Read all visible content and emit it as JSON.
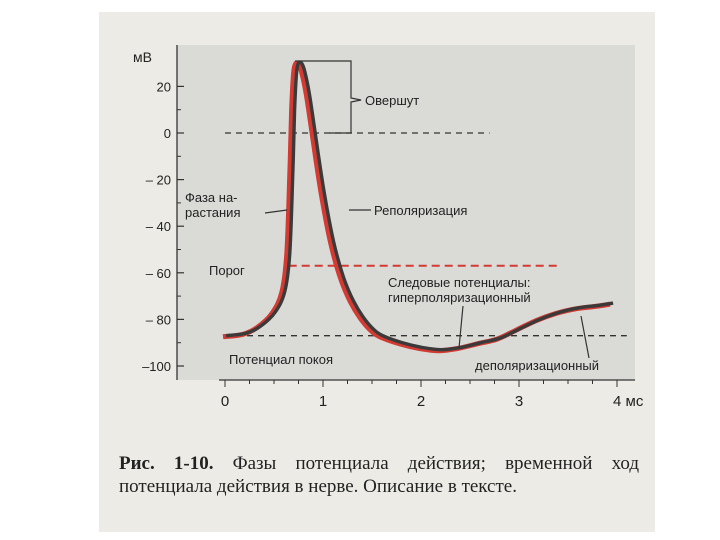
{
  "chart_data": {
    "type": "line",
    "ylabel": "мВ",
    "xunit": "мс",
    "xlim": [
      0,
      4
    ],
    "ylim": [
      -100,
      30
    ],
    "yticks": [
      20,
      0,
      -20,
      -40,
      -60,
      -80,
      -100
    ],
    "ytick_labels": [
      "20",
      "0",
      "– 20",
      "– 40",
      "– 60",
      "– 80",
      "–100"
    ],
    "xticks": [
      0,
      1,
      2,
      3,
      4
    ],
    "xtick_labels": [
      "0",
      "1",
      "2",
      "3",
      "4 мс"
    ],
    "grid": false,
    "series": [
      {
        "x": [
          0,
          0.2,
          0.35,
          0.5,
          0.6,
          0.65,
          0.68,
          0.7,
          0.72,
          0.74,
          0.77,
          0.8,
          0.85,
          0.9,
          1.0,
          1.1,
          1.2,
          1.3,
          1.4,
          1.5,
          1.6,
          1.8,
          2.0,
          2.2,
          2.4,
          2.6,
          2.8,
          3.0,
          3.2,
          3.4,
          3.6,
          3.8,
          3.95
        ],
        "y": [
          -87,
          -86,
          -83,
          -77,
          -68,
          -52,
          -20,
          10,
          26,
          30,
          30,
          27,
          17,
          3,
          -25,
          -47,
          -62,
          -72,
          -79,
          -84,
          -87,
          -90,
          -92,
          -93,
          -92,
          -90,
          -88,
          -84,
          -80,
          -77,
          -75,
          -74,
          -73
        ]
      }
    ],
    "reference_lines": [
      {
        "y": 0,
        "x": [
          0,
          2.7
        ],
        "style": "dashed",
        "color": "#333333"
      },
      {
        "y": -57,
        "x": [
          0.65,
          3.4
        ],
        "style": "dashed",
        "color": "#d23a32",
        "label": "Порог"
      },
      {
        "y": -87,
        "x": [
          0,
          4.1
        ],
        "style": "dashed",
        "color": "#333333",
        "label": "Потенциал покоя"
      }
    ],
    "annotations": {
      "overshoot": "Овершут",
      "rise_line1": "Фаза на-",
      "rise_line2": "растания",
      "repolarization": "Реполяризация",
      "threshold": "Порог",
      "trace_line1": "Следовые потенциалы:",
      "trace_line2": "гиперполяризационный",
      "resting": "Потенциал покоя",
      "depolarizing": "деполяризационный"
    }
  },
  "caption": {
    "label": "Рис. 1-10.",
    "text": " Фазы потенциала действия; временной ход потенциала действия в нерве. Описание в тексте."
  },
  "colors": {
    "curve_dark": "#3a3a3a",
    "curve_red": "#d23a32",
    "plot_bg": "#dadad7",
    "page_bg": "#ecebe6"
  }
}
